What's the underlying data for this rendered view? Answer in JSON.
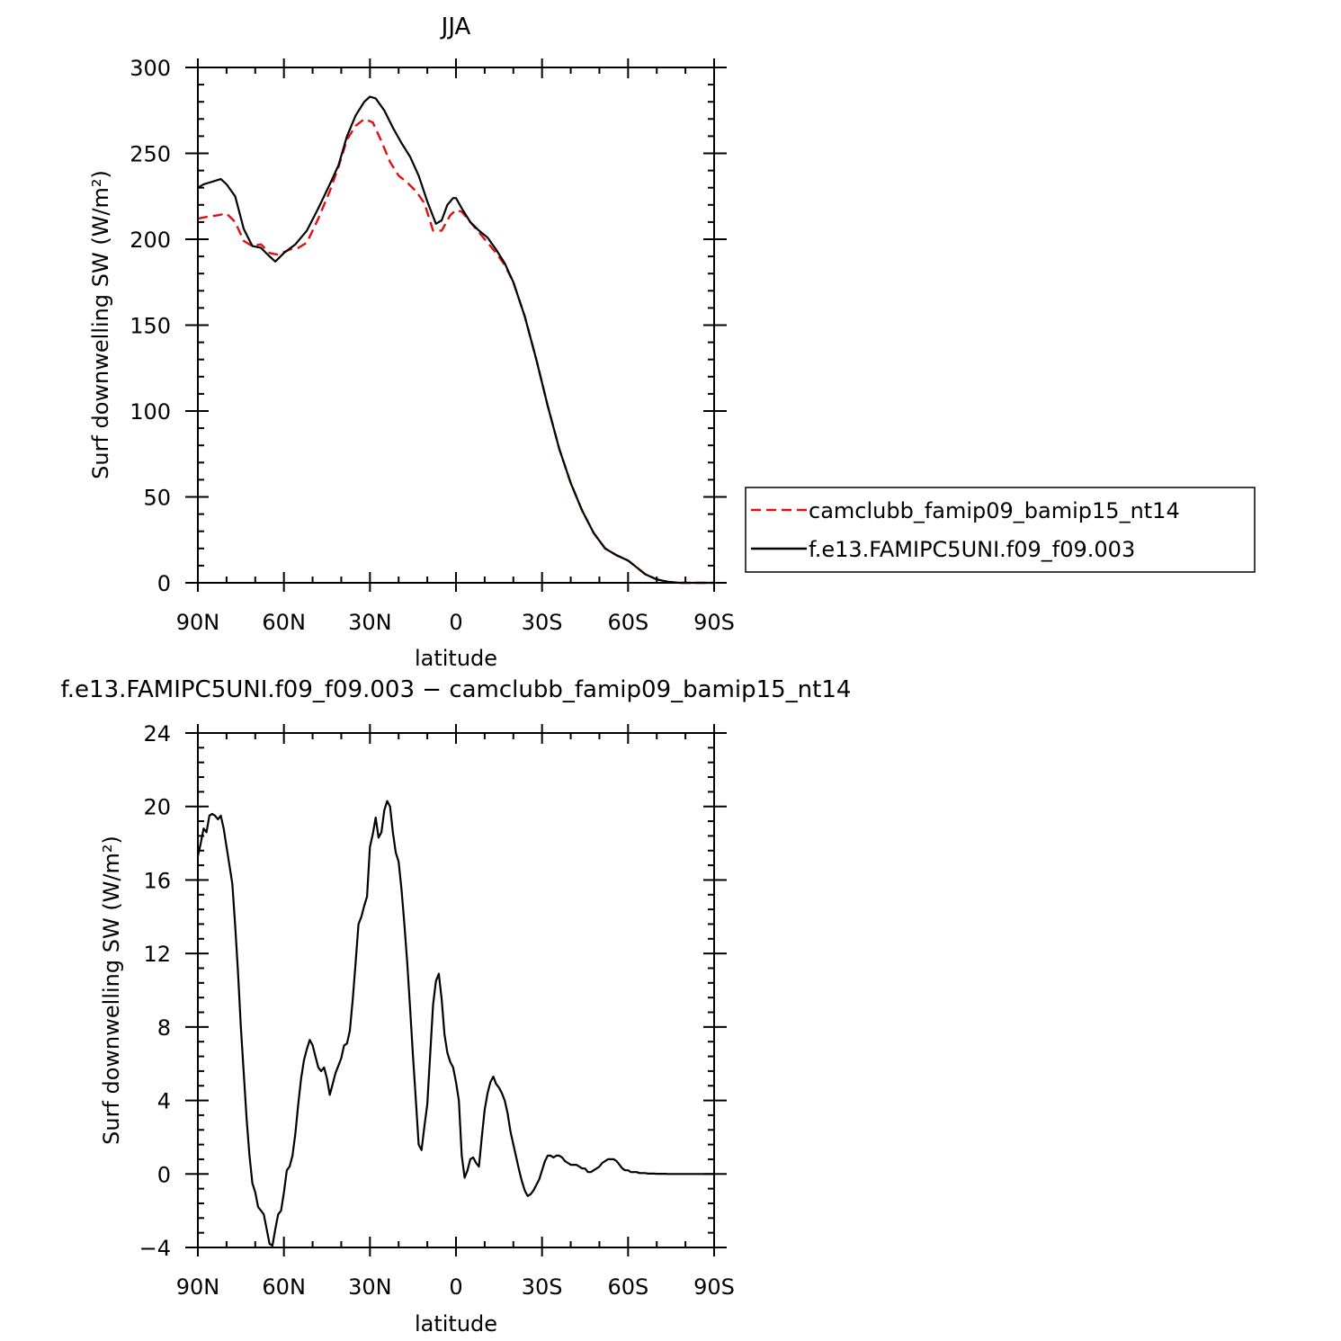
{
  "chart_data": [
    {
      "type": "line",
      "title": "JJA",
      "xlabel": "latitude",
      "ylabel": "Surf  downwelling SW (W/m²)",
      "x_ticks": [
        90,
        60,
        30,
        0,
        -30,
        -60,
        -90
      ],
      "x_tick_labels": [
        "90N",
        "60N",
        "30N",
        "0",
        "30S",
        "60S",
        "90S"
      ],
      "y_ticks": [
        0,
        50,
        100,
        150,
        200,
        250,
        300
      ],
      "y_tick_labels": [
        "0",
        "50",
        "100",
        "150",
        "200",
        "250",
        "300"
      ],
      "xlim": [
        90,
        -90
      ],
      "ylim": [
        0,
        300
      ],
      "legend_position": "right",
      "series": [
        {
          "name": "camclubb_famip09_bamip15_nt14",
          "color": "#e01010",
          "dash": "dashed",
          "x": [
            90,
            87,
            83,
            80,
            77,
            74,
            71,
            68,
            65,
            62,
            58,
            55,
            52,
            48,
            44,
            41,
            38,
            35,
            32,
            29,
            26,
            23,
            20,
            17,
            14,
            11,
            8,
            5,
            2,
            0,
            -2,
            -5,
            -8,
            -11,
            -14,
            -17,
            -20,
            -24,
            -28,
            -32,
            -36,
            -40,
            -44,
            -48,
            -52,
            -56,
            -60,
            -63,
            -66,
            -70,
            -74,
            -78,
            -82,
            -86,
            -90
          ],
          "values": [
            212,
            213,
            214,
            215,
            210,
            199,
            196,
            197,
            192,
            191,
            194,
            195,
            198,
            212,
            228,
            242,
            258,
            266,
            270,
            268,
            257,
            245,
            237,
            233,
            228,
            221,
            205,
            205,
            214,
            217,
            216,
            210,
            204,
            198,
            192,
            185,
            175,
            155,
            130,
            103,
            78,
            58,
            42,
            29,
            20,
            16,
            13,
            9,
            5,
            2,
            0.5,
            0,
            0,
            0,
            0
          ]
        },
        {
          "name": "f.e13.FAMIPC5UNI.f09_f09.003",
          "color": "#000000",
          "dash": "solid",
          "x": [
            90,
            88,
            86,
            84,
            82,
            80,
            77,
            74,
            71,
            68,
            65,
            63,
            60,
            56,
            52,
            48,
            44,
            41,
            38,
            35,
            32,
            30,
            28,
            25,
            22,
            19,
            16,
            13,
            10,
            7,
            5,
            3,
            1,
            0,
            -2,
            -5,
            -8,
            -11,
            -14,
            -17,
            -20,
            -24,
            -28,
            -32,
            -36,
            -40,
            -44,
            -48,
            -52,
            -56,
            -60,
            -63,
            -66,
            -70,
            -74,
            -78,
            -82,
            -86,
            -90
          ],
          "values": [
            230,
            232,
            233,
            234,
            235,
            232,
            225,
            206,
            196,
            195,
            190,
            187,
            192,
            197,
            205,
            218,
            232,
            243,
            260,
            272,
            280,
            283,
            282,
            275,
            265,
            256,
            248,
            237,
            222,
            209,
            211,
            220,
            224,
            224,
            218,
            210,
            205,
            201,
            194,
            186,
            175,
            155,
            130,
            103,
            78,
            58,
            42,
            29,
            20,
            16,
            13,
            9,
            5,
            2,
            0.5,
            0,
            0,
            0,
            0
          ]
        }
      ]
    },
    {
      "type": "line",
      "title": "f.e13.FAMIPC5UNI.f09_f09.003 − camclubb_famip09_bamip15_nt14",
      "xlabel": "latitude",
      "ylabel": "Surf  downwelling SW (W/m²)",
      "x_ticks": [
        90,
        60,
        30,
        0,
        -30,
        -60,
        -90
      ],
      "x_tick_labels": [
        "90N",
        "60N",
        "30N",
        "0",
        "30S",
        "60S",
        "90S"
      ],
      "y_ticks": [
        -4,
        0,
        4,
        8,
        12,
        16,
        20,
        24
      ],
      "y_tick_labels": [
        "−4",
        "0",
        "4",
        "8",
        "12",
        "16",
        "20",
        "24"
      ],
      "xlim": [
        90,
        -90
      ],
      "ylim": [
        -4,
        24
      ],
      "series": [
        {
          "color": "#000000",
          "dash": "solid",
          "x": [
            90,
            89,
            88,
            87,
            86,
            85,
            84,
            83,
            82,
            81,
            80,
            79,
            78,
            77,
            76,
            75,
            74,
            73,
            72,
            71,
            70,
            69,
            68,
            67,
            66,
            65,
            64,
            63,
            62,
            61,
            60,
            59,
            58,
            57,
            56,
            55,
            54,
            53,
            52,
            51,
            50,
            49,
            48,
            47,
            46,
            45,
            44,
            43,
            42,
            41,
            40,
            39,
            38,
            37,
            36,
            35,
            34,
            33,
            32,
            31,
            30,
            29,
            28,
            27,
            26,
            25,
            24,
            23,
            22,
            21,
            20,
            19,
            18,
            17,
            16,
            15,
            14,
            13,
            12,
            11,
            10,
            9,
            8,
            7,
            6,
            5,
            4,
            3,
            2,
            1,
            0,
            -1,
            -2,
            -3,
            -4,
            -5,
            -6,
            -7,
            -8,
            -9,
            -10,
            -11,
            -12,
            -13,
            -14,
            -15,
            -16,
            -17,
            -18,
            -19,
            -20,
            -21,
            -22,
            -23,
            -24,
            -25,
            -26,
            -27,
            -28,
            -29,
            -30,
            -31,
            -32,
            -33,
            -34,
            -35,
            -36,
            -37,
            -38,
            -39,
            -40,
            -41,
            -42,
            -43,
            -44,
            -45,
            -46,
            -47,
            -48,
            -49,
            -50,
            -51,
            -52,
            -53,
            -54,
            -55,
            -56,
            -57,
            -58,
            -59,
            -60,
            -61,
            -62,
            -63,
            -64,
            -65,
            -66,
            -67,
            -68,
            -69,
            -70,
            -71,
            -72,
            -73,
            -74,
            -75,
            -76,
            -77,
            -78,
            -79,
            -80,
            -81,
            -82,
            -83,
            -84,
            -85,
            -86,
            -87,
            -88,
            -89,
            -90
          ],
          "values": [
            17.3,
            18.0,
            18.8,
            18.6,
            19.5,
            19.6,
            19.5,
            19.3,
            19.5,
            18.8,
            17.8,
            16.8,
            15.8,
            13.5,
            11.0,
            8.0,
            5.5,
            3.0,
            1.0,
            -0.5,
            -1.0,
            -1.8,
            -2.0,
            -2.2,
            -3.0,
            -3.8,
            -3.9,
            -3.0,
            -2.2,
            -2.0,
            -1.0,
            0.2,
            0.4,
            1.0,
            2.2,
            3.8,
            5.2,
            6.2,
            6.8,
            7.3,
            7.0,
            6.4,
            5.8,
            5.6,
            5.8,
            5.2,
            4.3,
            4.9,
            5.5,
            5.9,
            6.3,
            7.0,
            7.1,
            7.8,
            9.5,
            11.5,
            13.6,
            14.0,
            14.6,
            15.1,
            17.8,
            18.5,
            19.4,
            18.3,
            18.6,
            19.8,
            20.3,
            20.0,
            18.6,
            17.5,
            17.0,
            15.5,
            13.6,
            11.5,
            9.0,
            6.4,
            4.0,
            1.6,
            1.3,
            2.6,
            3.8,
            6.5,
            9.2,
            10.5,
            10.9,
            9.5,
            7.6,
            6.6,
            6.1,
            5.8,
            5.0,
            4.0,
            1.0,
            -0.2,
            0.2,
            0.8,
            0.9,
            0.6,
            0.4,
            2.0,
            3.5,
            4.4,
            5.0,
            5.3,
            4.9,
            4.7,
            4.4,
            4.0,
            3.3,
            2.3,
            1.6,
            0.9,
            0.2,
            -0.4,
            -0.9,
            -1.2,
            -1.1,
            -0.9,
            -0.6,
            -0.3,
            0.2,
            0.7,
            1.0,
            1.0,
            0.9,
            1.0,
            1.0,
            0.9,
            0.7,
            0.6,
            0.5,
            0.5,
            0.5,
            0.4,
            0.3,
            0.3,
            0.1,
            0.1,
            0.2,
            0.3,
            0.4,
            0.6,
            0.7,
            0.8,
            0.8,
            0.8,
            0.7,
            0.5,
            0.3,
            0.2,
            0.2,
            0.1,
            0.1,
            0.1,
            0.05,
            0.05,
            0.05,
            0.02,
            0.02,
            0.02,
            0.01,
            0.01,
            0.01,
            0.01,
            0.0,
            0.0,
            0.0,
            0.0,
            0.0,
            0.0,
            0.0,
            0.0,
            0.0,
            0.0,
            0.0,
            0.0,
            0.0,
            0.0,
            0.0,
            0.0,
            0.0
          ]
        }
      ]
    }
  ]
}
